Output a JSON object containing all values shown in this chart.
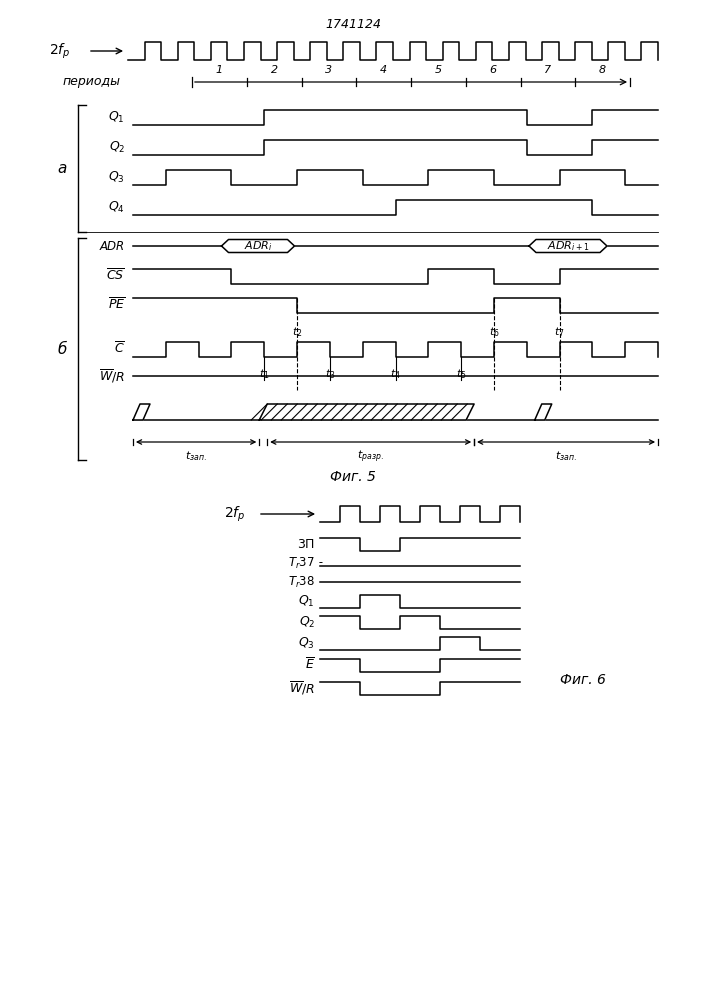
{
  "title": "1741124",
  "fig5_label": "Фиг. 5",
  "fig6_label": "Фиг. 6",
  "bg_color": "#ffffff",
  "line_color": "#000000"
}
